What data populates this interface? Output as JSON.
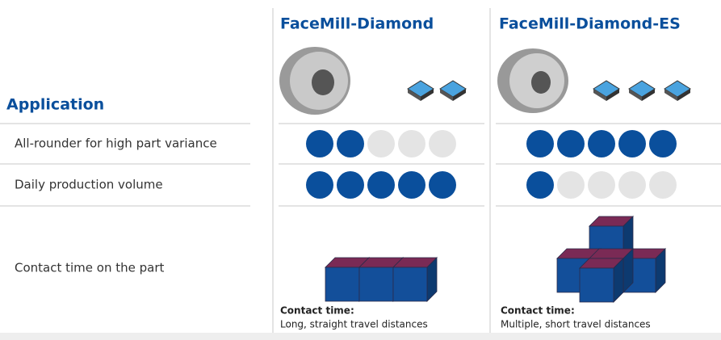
{
  "header": {
    "row_label": "Application",
    "columns": [
      "FaceMill-Diamond",
      "FaceMill-Diamond-ES"
    ]
  },
  "max_rating": 5,
  "rows": [
    {
      "label": "All-rounder for high part variance",
      "ratings": [
        2,
        5
      ]
    },
    {
      "label": "Daily production volume",
      "ratings": [
        5,
        1
      ]
    },
    {
      "label": "Contact time on the part",
      "notes": [
        {
          "title": "Contact time:",
          "text": "Long, straight travel distances"
        },
        {
          "title": "Contact time:",
          "text": "Multiple, short travel distances"
        }
      ]
    }
  ]
}
